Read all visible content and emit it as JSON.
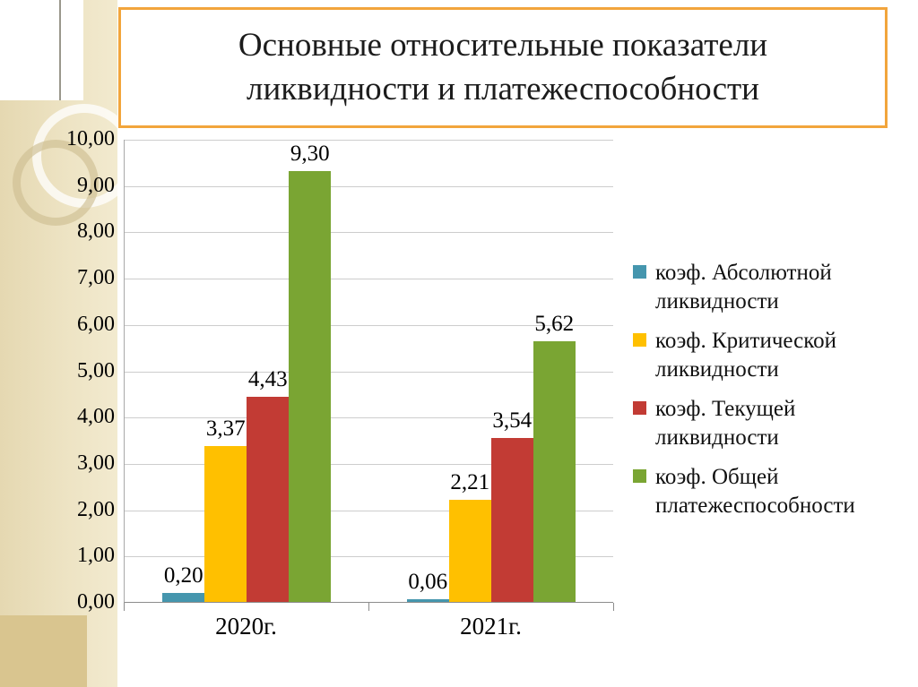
{
  "slide": {
    "title": "Основные относительные показатели ликвидности и платежеспособности"
  },
  "colors": {
    "accent_border": "#F2A53C",
    "sidebar_beige": "#EBE0BD",
    "series_teal": "#4596AE",
    "series_yellow": "#FFC000",
    "series_red": "#C23B34",
    "series_green": "#7AA533"
  },
  "chart_data": {
    "type": "bar",
    "title": "Основные относительные показатели ликвидности и платежеспособности",
    "categories": [
      "2020г.",
      "2021г."
    ],
    "series": [
      {
        "name": "коэф. Абсолютной ликвидности",
        "color": "#4596AE",
        "values": [
          0.2,
          0.06
        ],
        "labels": [
          "0,20",
          "0,06"
        ]
      },
      {
        "name": "коэф. Критической ликвидности",
        "color": "#FFC000",
        "values": [
          3.37,
          2.21
        ],
        "labels": [
          "3,37",
          "2,21"
        ]
      },
      {
        "name": "коэф. Текущей ликвидности",
        "color": "#C23B34",
        "values": [
          4.43,
          3.54
        ],
        "labels": [
          "4,43",
          "3,54"
        ]
      },
      {
        "name": "коэф. Общей платежеспособности",
        "color": "#7AA533",
        "values": [
          9.3,
          5.62
        ],
        "labels": [
          "9,30",
          "5,62"
        ]
      }
    ],
    "xlabel": "",
    "ylabel": "",
    "ylim": [
      0,
      10
    ],
    "ytick_step": 1,
    "ytick_labels": [
      "0,00",
      "1,00",
      "2,00",
      "3,00",
      "4,00",
      "5,00",
      "6,00",
      "7,00",
      "8,00",
      "9,00",
      "10,00"
    ],
    "grid": true,
    "legend_position": "right"
  }
}
